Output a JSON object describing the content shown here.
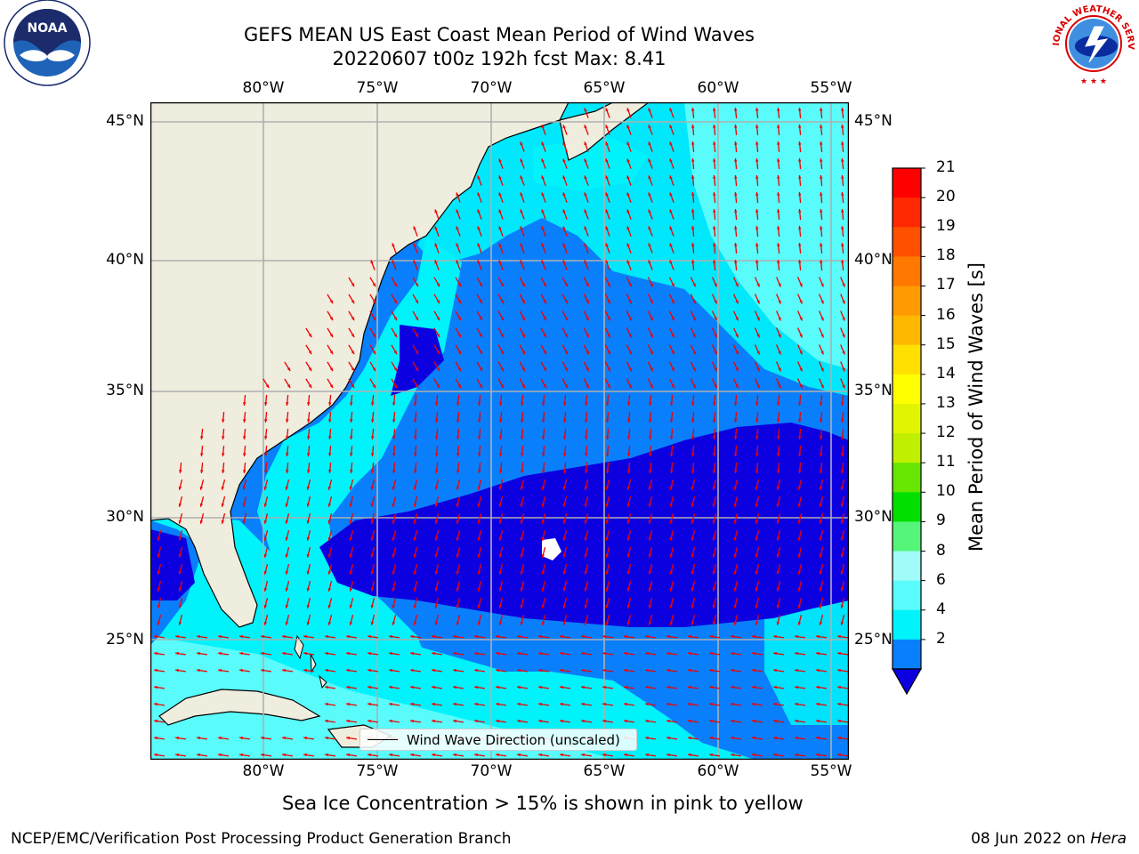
{
  "header": {
    "title_line1": "GEFS MEAN US East Coast Mean Period of Wind Waves",
    "title_line2": "20220607 t00z 192h fcst   Max: 8.41"
  },
  "logos": {
    "noaa_text": "NOAA",
    "noaa_ring_text": "NATIONAL OCEANIC AND ATMOSPHERIC ADMINISTRATION · U.S. DEPARTMENT OF COMMERCE",
    "nws_ring_text": "NATIONAL WEATHER SERVICE"
  },
  "map": {
    "lon_labels": [
      "80°W",
      "75°W",
      "70°W",
      "65°W",
      "60°W",
      "55°W"
    ],
    "lat_labels": [
      "45°N",
      "40°N",
      "35°N",
      "30°N",
      "25°N"
    ],
    "legend_label": "Wind Wave Direction (unscaled)",
    "colors": {
      "land": "#efedde",
      "blue": "#0a7ffb",
      "dark_blue": "#0d00e0",
      "cyan": "#00f3fb",
      "light_cyan": "#5afbfb",
      "arrow": "#f00000",
      "grid": "#b0b0b0"
    }
  },
  "colorbar": {
    "title": "Mean Period of Wind Waves [s]",
    "labels": [
      "21",
      "20",
      "19",
      "18",
      "17",
      "16",
      "15",
      "14",
      "13",
      "12",
      "11",
      "10",
      "9",
      "8",
      "6",
      "4",
      "2"
    ],
    "colors": [
      "#ff0000",
      "#ff2800",
      "#ff5000",
      "#ff7800",
      "#ff9a00",
      "#ffb800",
      "#ffe000",
      "#ffff00",
      "#e2f500",
      "#c0f000",
      "#66e600",
      "#00e000",
      "#55f57a",
      "#a0fcf8",
      "#5afbfb",
      "#00f3fb",
      "#0a7ffb"
    ]
  },
  "notes": {
    "sea_ice": "Sea Ice Concentration > 15% is shown in pink to yellow"
  },
  "footer": {
    "left": "NCEP/EMC/Verification Post Processing Product Generation Branch",
    "right_prefix": "08 Jun 2022 on ",
    "right_machine": "Hera"
  }
}
